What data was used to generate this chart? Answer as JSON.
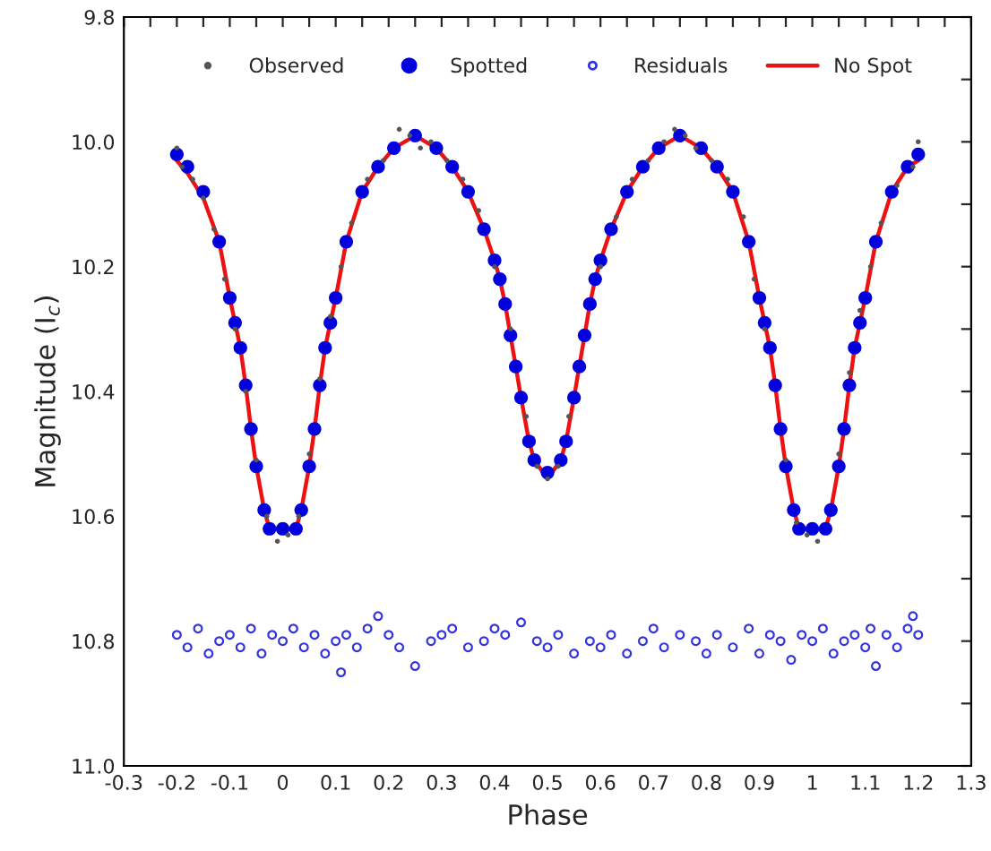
{
  "chart_data": {
    "type": "scatter",
    "xlabel": "Phase",
    "ylabel": "Magnitude (I$_{c}$)",
    "xlim": [
      -0.3,
      1.3
    ],
    "ylim": [
      11.0,
      9.8
    ],
    "xticks": [
      -0.3,
      {
        "value": -0.25,
        "label": null
      },
      -0.2,
      {
        "value": -0.15,
        "label": null
      },
      -0.1,
      {
        "value": -0.05,
        "label": null
      },
      0,
      {
        "value": 0.05,
        "label": null
      },
      0.1,
      {
        "value": 0.15,
        "label": null
      },
      0.2,
      {
        "value": 0.25,
        "label": null
      },
      0.3,
      {
        "value": 0.35,
        "label": null
      },
      0.4,
      {
        "value": 0.45,
        "label": null
      },
      0.5,
      {
        "value": 0.55,
        "label": null
      },
      0.6,
      {
        "value": 0.65,
        "label": null
      },
      0.7,
      {
        "value": 0.75,
        "label": null
      },
      0.8,
      {
        "value": 0.85,
        "label": null
      },
      0.9,
      {
        "value": 0.95,
        "label": null
      },
      1,
      {
        "value": 1.05,
        "label": null
      },
      1.1,
      {
        "value": 1.15,
        "label": null
      },
      1.2,
      {
        "value": 1.25,
        "label": null
      },
      1.3
    ],
    "yticks": [
      9.8,
      {
        "value": 9.9,
        "label": null
      },
      {
        "value": 10,
        "label": "10.0"
      },
      {
        "value": 10.1,
        "label": null
      },
      10.2,
      {
        "value": 10.3,
        "label": null
      },
      10.4,
      {
        "value": 10.5,
        "label": null
      },
      10.6,
      {
        "value": 10.7,
        "label": null
      },
      10.8,
      {
        "value": 10.9,
        "label": null
      },
      {
        "value": 11,
        "label": "11.0"
      }
    ],
    "grid": false,
    "legend": "top",
    "series": [
      {
        "name": "Observed",
        "type": "scatter",
        "marker": "circle",
        "color": "#555555",
        "x": [
          -0.2,
          -0.19,
          -0.17,
          -0.15,
          -0.13,
          -0.11,
          -0.09,
          -0.07,
          -0.05,
          -0.03,
          -0.01,
          0.01,
          0.03,
          0.05,
          0.07,
          0.09,
          0.11,
          0.13,
          0.16,
          0.19,
          0.22,
          0.24,
          0.26,
          0.28,
          0.31,
          0.34,
          0.37,
          0.4,
          0.43,
          0.46,
          0.48,
          0.5,
          0.52,
          0.54,
          0.6,
          0.63,
          0.66,
          0.69,
          0.72,
          0.74,
          0.76,
          0.78,
          0.81,
          0.84,
          0.87,
          0.89,
          0.91,
          0.95,
          0.97,
          0.99,
          1.01,
          1.05,
          1.07,
          1.09,
          1.11,
          1.13,
          1.16,
          1.19,
          1.2
        ],
        "values": [
          10.01,
          10.04,
          10.06,
          10.09,
          10.14,
          10.22,
          10.3,
          10.4,
          10.51,
          10.6,
          10.64,
          10.63,
          10.6,
          10.5,
          10.38,
          10.28,
          10.2,
          10.13,
          10.06,
          10.03,
          9.98,
          9.99,
          10.01,
          10.0,
          10.03,
          10.06,
          10.11,
          10.2,
          10.3,
          10.44,
          10.52,
          10.54,
          10.52,
          10.44,
          10.2,
          10.12,
          10.06,
          10.03,
          10.0,
          9.98,
          9.99,
          10.01,
          10.03,
          10.06,
          10.12,
          10.22,
          10.3,
          10.51,
          10.61,
          10.63,
          10.64,
          10.5,
          10.37,
          10.27,
          10.2,
          10.13,
          10.07,
          10.04,
          10.0
        ]
      },
      {
        "name": "Spotted",
        "type": "scatter",
        "marker": "circle",
        "color": "#0000dd",
        "x": [
          -0.2,
          -0.18,
          -0.15,
          -0.12,
          -0.1,
          -0.09,
          -0.08,
          -0.07,
          -0.06,
          -0.05,
          -0.035,
          -0.025,
          0,
          0.025,
          0.035,
          0.05,
          0.06,
          0.07,
          0.08,
          0.09,
          0.1,
          0.12,
          0.15,
          0.18,
          0.21,
          0.25,
          0.29,
          0.32,
          0.35,
          0.38,
          0.4,
          0.41,
          0.42,
          0.43,
          0.44,
          0.45,
          0.465,
          0.475,
          0.5,
          0.525,
          0.535,
          0.55,
          0.56,
          0.57,
          0.58,
          0.59,
          0.6,
          0.62,
          0.65,
          0.68,
          0.71,
          0.75,
          0.79,
          0.82,
          0.85,
          0.88,
          0.9,
          0.91,
          0.92,
          0.93,
          0.94,
          0.95,
          0.965,
          0.975,
          1.0,
          1.025,
          1.035,
          1.05,
          1.06,
          1.07,
          1.08,
          1.09,
          1.1,
          1.12,
          1.15,
          1.18,
          1.2
        ],
        "values": [
          10.02,
          10.04,
          10.08,
          10.16,
          10.25,
          10.29,
          10.33,
          10.39,
          10.46,
          10.52,
          10.59,
          10.62,
          10.62,
          10.62,
          10.59,
          10.52,
          10.46,
          10.39,
          10.33,
          10.29,
          10.25,
          10.16,
          10.08,
          10.04,
          10.01,
          9.99,
          10.01,
          10.04,
          10.08,
          10.14,
          10.19,
          10.22,
          10.26,
          10.31,
          10.36,
          10.41,
          10.48,
          10.51,
          10.53,
          10.51,
          10.48,
          10.41,
          10.36,
          10.31,
          10.26,
          10.22,
          10.19,
          10.14,
          10.08,
          10.04,
          10.01,
          9.99,
          10.01,
          10.04,
          10.08,
          10.16,
          10.25,
          10.29,
          10.33,
          10.39,
          10.46,
          10.52,
          10.59,
          10.62,
          10.62,
          10.62,
          10.59,
          10.52,
          10.46,
          10.39,
          10.33,
          10.29,
          10.25,
          10.16,
          10.08,
          10.04,
          10.02
        ]
      },
      {
        "name": "Residuals",
        "type": "scatter",
        "marker": "open circle",
        "color": "#3333dd",
        "x": [
          -0.2,
          -0.18,
          -0.16,
          -0.14,
          -0.12,
          -0.1,
          -0.08,
          -0.06,
          -0.04,
          -0.02,
          0,
          0.02,
          0.04,
          0.06,
          0.08,
          0.1,
          0.11,
          0.12,
          0.14,
          0.16,
          0.18,
          0.2,
          0.22,
          0.25,
          0.28,
          0.3,
          0.32,
          0.35,
          0.38,
          0.4,
          0.42,
          0.45,
          0.48,
          0.5,
          0.52,
          0.55,
          0.58,
          0.6,
          0.62,
          0.65,
          0.68,
          0.7,
          0.72,
          0.75,
          0.78,
          0.8,
          0.82,
          0.85,
          0.88,
          0.9,
          0.92,
          0.94,
          0.96,
          0.98,
          1.0,
          1.02,
          1.04,
          1.06,
          1.08,
          1.1,
          1.11,
          1.12,
          1.14,
          1.16,
          1.18,
          1.19,
          1.2
        ],
        "values": [
          10.79,
          10.81,
          10.78,
          10.82,
          10.8,
          10.79,
          10.81,
          10.78,
          10.82,
          10.79,
          10.8,
          10.78,
          10.81,
          10.79,
          10.82,
          10.8,
          10.85,
          10.79,
          10.81,
          10.78,
          10.76,
          10.79,
          10.81,
          10.84,
          10.8,
          10.79,
          10.78,
          10.81,
          10.8,
          10.78,
          10.79,
          10.77,
          10.8,
          10.81,
          10.79,
          10.82,
          10.8,
          10.81,
          10.79,
          10.82,
          10.8,
          10.78,
          10.81,
          10.79,
          10.8,
          10.82,
          10.79,
          10.81,
          10.78,
          10.82,
          10.79,
          10.8,
          10.83,
          10.79,
          10.8,
          10.78,
          10.82,
          10.8,
          10.79,
          10.81,
          10.78,
          10.84,
          10.79,
          10.81,
          10.78,
          10.76,
          10.79
        ]
      },
      {
        "name": "No Spot",
        "type": "line",
        "marker": "none",
        "line_style": "solid",
        "color": "#ee1111",
        "x": [
          -0.2,
          -0.18,
          -0.15,
          -0.12,
          -0.1,
          -0.09,
          -0.08,
          -0.07,
          -0.06,
          -0.05,
          -0.035,
          -0.025,
          0,
          0.025,
          0.035,
          0.05,
          0.06,
          0.07,
          0.08,
          0.09,
          0.1,
          0.12,
          0.15,
          0.18,
          0.21,
          0.25,
          0.29,
          0.32,
          0.35,
          0.38,
          0.4,
          0.41,
          0.42,
          0.43,
          0.44,
          0.45,
          0.465,
          0.475,
          0.5,
          0.525,
          0.535,
          0.55,
          0.56,
          0.57,
          0.58,
          0.59,
          0.6,
          0.62,
          0.65,
          0.68,
          0.71,
          0.75,
          0.79,
          0.82,
          0.85,
          0.88,
          0.9,
          0.91,
          0.92,
          0.93,
          0.94,
          0.95,
          0.965,
          0.975,
          1.0,
          1.025,
          1.035,
          1.05,
          1.06,
          1.07,
          1.08,
          1.09,
          1.1,
          1.12,
          1.15,
          1.18,
          1.2
        ],
        "values": [
          10.03,
          10.05,
          10.09,
          10.16,
          10.25,
          10.29,
          10.33,
          10.39,
          10.46,
          10.52,
          10.59,
          10.62,
          10.62,
          10.62,
          10.59,
          10.52,
          10.46,
          10.39,
          10.33,
          10.29,
          10.25,
          10.16,
          10.08,
          10.04,
          10.01,
          9.99,
          10.01,
          10.04,
          10.08,
          10.14,
          10.19,
          10.22,
          10.26,
          10.31,
          10.36,
          10.41,
          10.48,
          10.51,
          10.54,
          10.51,
          10.48,
          10.41,
          10.36,
          10.31,
          10.26,
          10.22,
          10.19,
          10.14,
          10.08,
          10.04,
          10.01,
          9.99,
          10.01,
          10.04,
          10.08,
          10.16,
          10.25,
          10.29,
          10.33,
          10.39,
          10.46,
          10.52,
          10.59,
          10.62,
          10.62,
          10.62,
          10.59,
          10.52,
          10.46,
          10.39,
          10.33,
          10.29,
          10.25,
          10.16,
          10.08,
          10.04,
          10.03
        ]
      }
    ]
  }
}
